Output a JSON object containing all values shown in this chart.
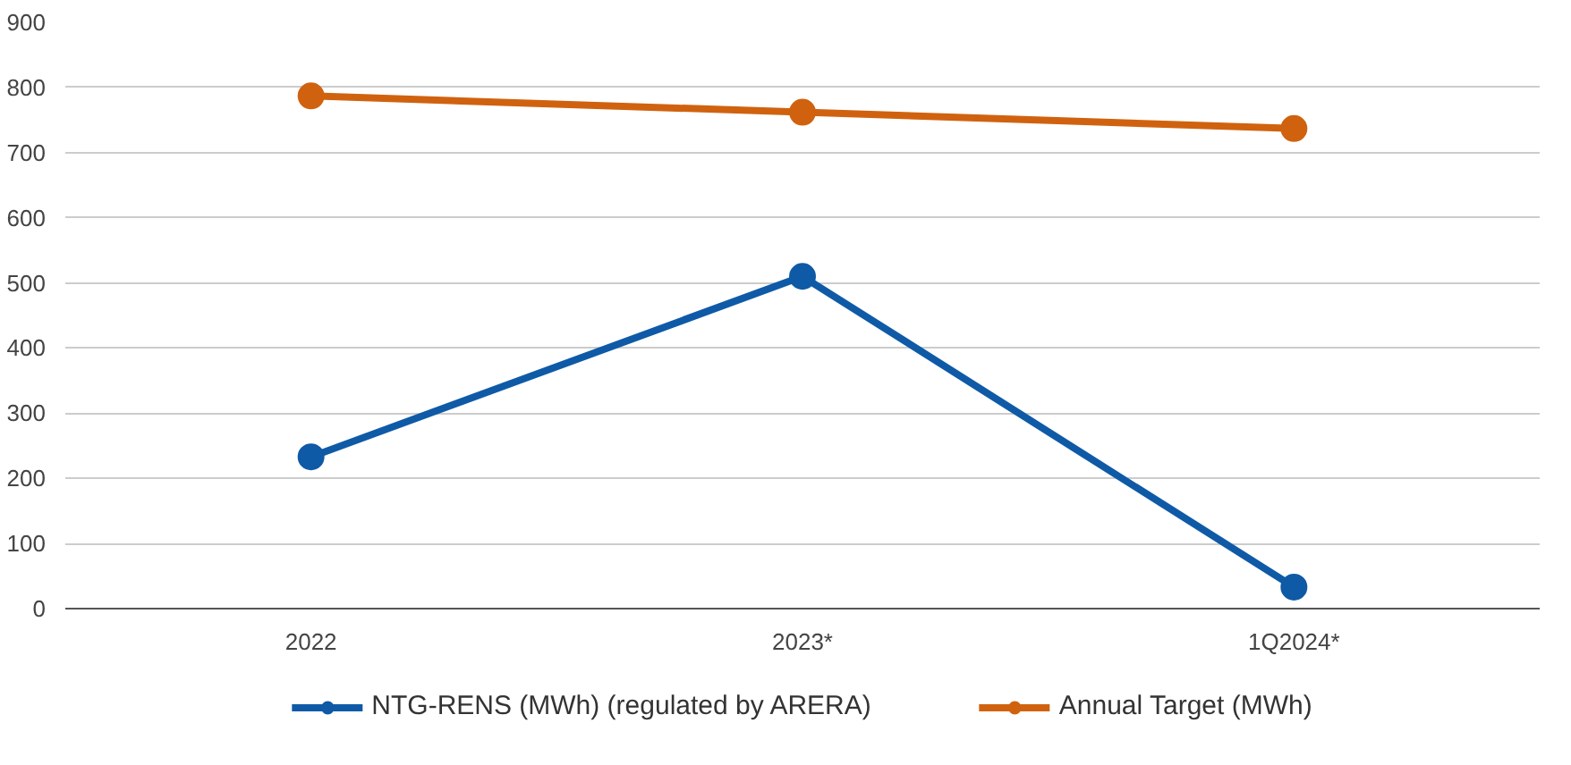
{
  "chart_data": {
    "type": "line",
    "categories": [
      "2022",
      "2023*",
      "1Q2024*"
    ],
    "series": [
      {
        "name": "NTG-RENS (MWh) (regulated by ARERA)",
        "color": "#0f5aa6",
        "values": [
          233,
          510,
          33
        ]
      },
      {
        "name": "Annual Target (MWh)",
        "color": "#d0620f",
        "values": [
          787,
          762,
          737
        ]
      }
    ],
    "ylim": [
      0,
      900
    ],
    "yticks": [
      0,
      100,
      200,
      300,
      400,
      500,
      600,
      700,
      800,
      900
    ],
    "grid": "y",
    "legend": "bottom",
    "marker": "circle",
    "line_style": "solid"
  }
}
